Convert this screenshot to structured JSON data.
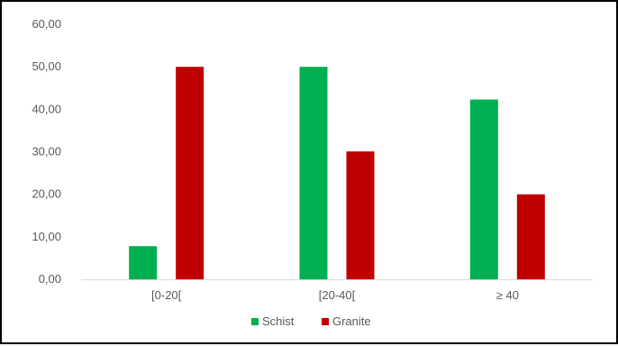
{
  "chart_data": {
    "type": "bar",
    "categories": [
      "[0-20[",
      "[20-40[",
      "≥ 40"
    ],
    "series": [
      {
        "name": "Schist",
        "values": [
          7.8,
          50.0,
          42.3
        ],
        "color": "#00b050"
      },
      {
        "name": "Granite",
        "values": [
          50.0,
          30.1,
          20.0
        ],
        "color": "#c00000"
      }
    ],
    "ylim": [
      0,
      60
    ],
    "yticks": [
      "0,00",
      "10,00",
      "20,00",
      "30,00",
      "40,00",
      "50,00",
      "60,00"
    ],
    "grid": false,
    "legend_position": "bottom",
    "axis_color": "#d9d9d9",
    "text_color": "#595959"
  }
}
